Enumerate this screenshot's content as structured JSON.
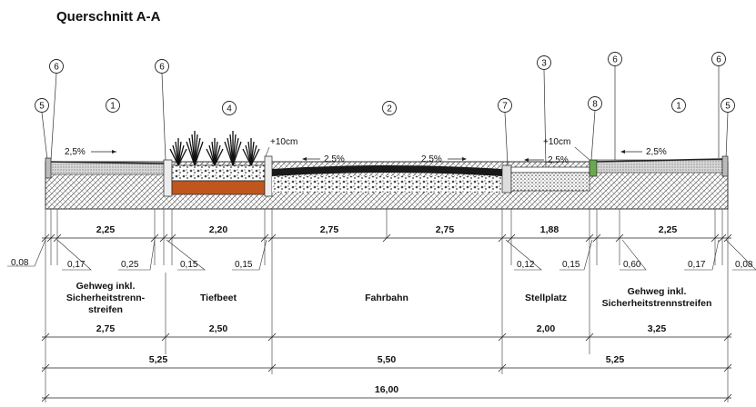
{
  "title": "Querschnitt A-A",
  "markers": [
    "5",
    "6",
    "1",
    "6",
    "4",
    "2",
    "7",
    "3",
    "8",
    "6",
    "1",
    "6",
    "5"
  ],
  "annotations": {
    "slope_left": "2,5%",
    "plus10_left": "+10cm",
    "slope_road_left": "2,5%",
    "slope_road_right": "2,5%",
    "plus10_right": "+10cm",
    "slope_parking": "2,5%",
    "slope_right": "2,5%"
  },
  "dims_row1": [
    "2,25",
    "2,20",
    "2,75",
    "2,75",
    "1,88",
    "2,25"
  ],
  "dims_small": [
    "0,08",
    "0,17",
    "0,25",
    "0,15",
    "0,15",
    "0,12",
    "0,15",
    "0,60",
    "0,17",
    "0,08"
  ],
  "zones": {
    "gehweg_left": [
      "Gehweg inkl.",
      "Sicherheitstrenn-",
      "streifen"
    ],
    "tiefbeet": "Tiefbeet",
    "fahrbahn": "Fahrbahn",
    "stellplatz": "Stellplatz",
    "gehweg_right": [
      "Gehweg inkl.",
      "Sicherheitstrennstreifen"
    ]
  },
  "dims_row2": [
    "2,75",
    "2,50",
    "2,00",
    "3,25"
  ],
  "dims_row3": [
    "5,25",
    "5,50",
    "5,25"
  ],
  "dims_total": "16,00"
}
